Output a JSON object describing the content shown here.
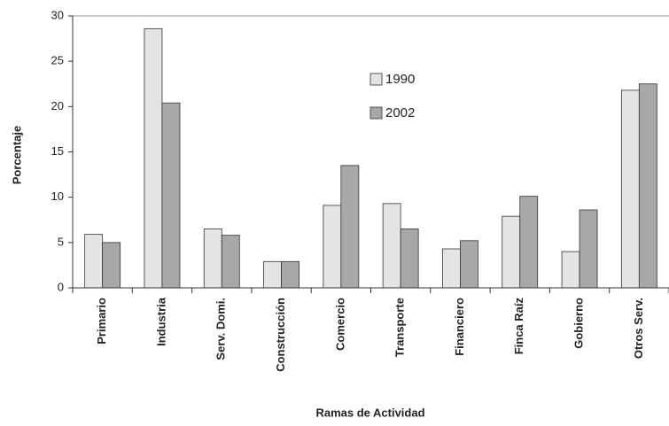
{
  "chart_data": {
    "type": "bar",
    "x_label": "Ramas de Actividad",
    "y_label": "Porcentaje",
    "categories": [
      "Primario",
      "Industria",
      "Serv. Domi.",
      "Construcción",
      "Comercio",
      "Transporte",
      "Financiero",
      "Finca Raíz",
      "Gobierno",
      "Otros Serv."
    ],
    "series": [
      {
        "name": "1990",
        "color": "#e4e4e4",
        "values": [
          5.9,
          28.6,
          6.5,
          2.9,
          9.1,
          9.3,
          4.3,
          7.9,
          4.0,
          21.8
        ]
      },
      {
        "name": "2002",
        "color": "#a8a8a8",
        "values": [
          5.0,
          20.4,
          5.8,
          2.9,
          13.5,
          6.5,
          5.2,
          10.1,
          8.6,
          22.5
        ]
      }
    ],
    "ylim": [
      0,
      30
    ],
    "yticks": [
      0,
      5,
      10,
      15,
      20,
      25,
      30
    ],
    "grid": false,
    "legend": "top-center"
  }
}
